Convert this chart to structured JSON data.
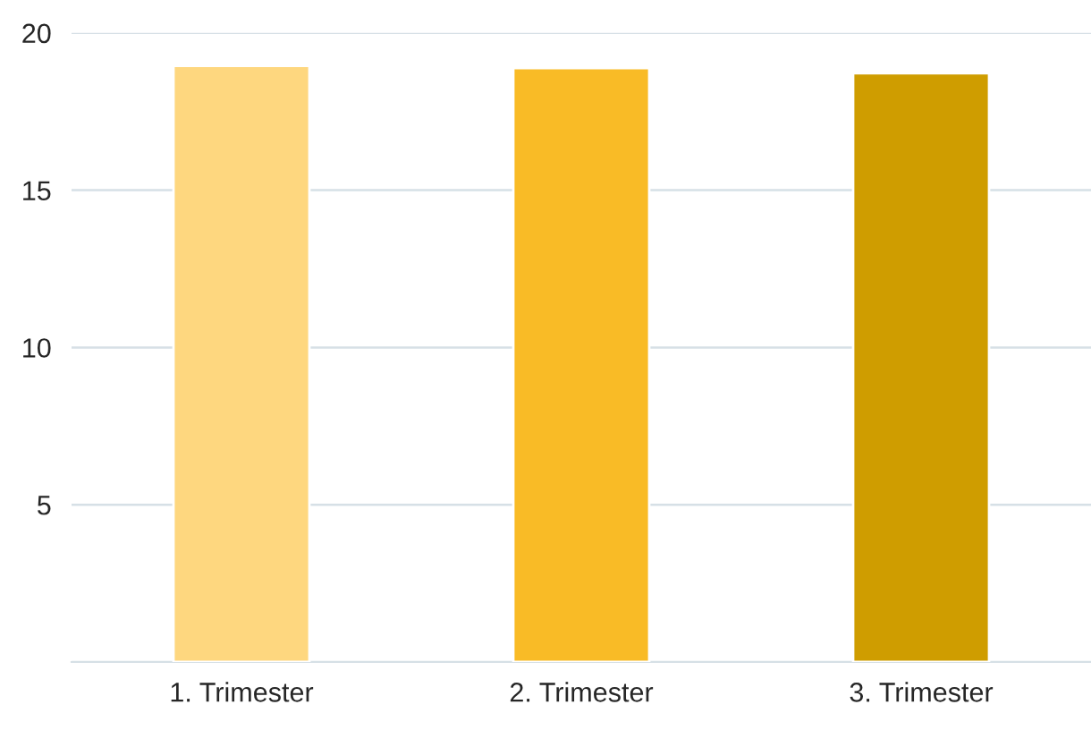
{
  "chart_data": {
    "type": "bar",
    "categories": [
      "1. Trimester",
      "2. Trimester",
      "3. Trimester"
    ],
    "values": [
      18.95,
      18.88,
      18.72
    ],
    "colors": [
      "#fed77f",
      "#f9bb26",
      "#cf9d00"
    ],
    "ylim": [
      0,
      20
    ],
    "yticks": [
      {
        "value": 0,
        "label": null
      },
      5,
      10,
      15,
      20
    ],
    "grid": "y"
  }
}
